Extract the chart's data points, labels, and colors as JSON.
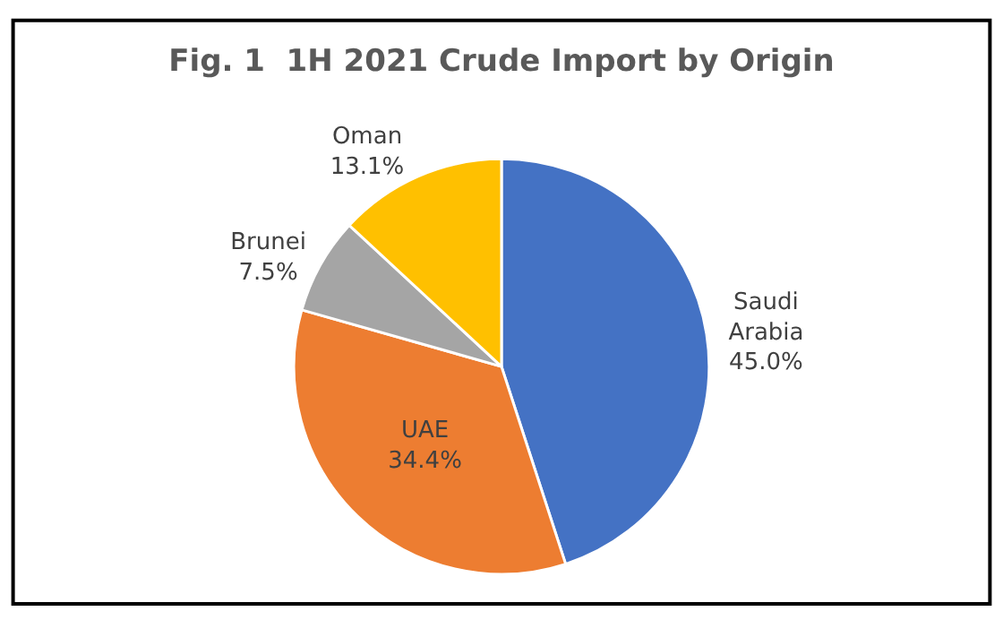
{
  "chart_data": {
    "type": "pie",
    "title": "Fig. 1  1H 2021 Crude Import by Origin",
    "categories": [
      "Saudi Arabia",
      "UAE",
      "Brunei",
      "Oman"
    ],
    "values": [
      45.0,
      34.4,
      7.5,
      13.1
    ],
    "value_labels": [
      "45.0%",
      "34.4%",
      "7.5%",
      "13.1%"
    ],
    "colors": [
      "#4472c4",
      "#ed7d31",
      "#a5a5a5",
      "#ffc000"
    ],
    "legend": false
  }
}
